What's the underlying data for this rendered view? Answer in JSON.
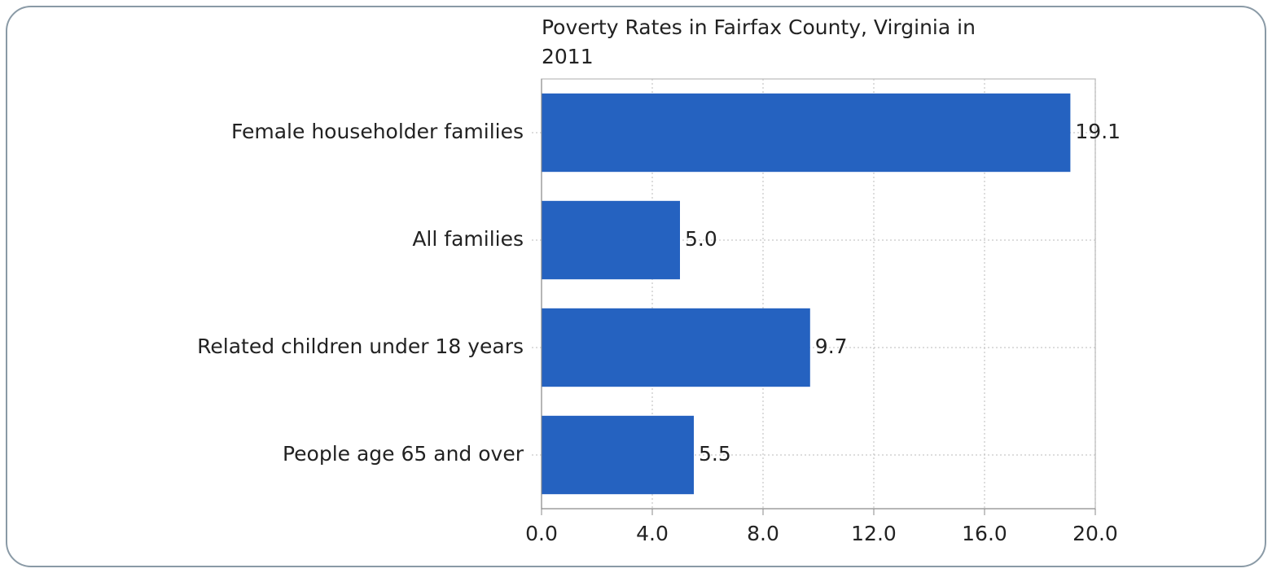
{
  "chart_data": {
    "type": "bar",
    "orientation": "horizontal",
    "title": "Poverty Rates in Fairfax County, Virginia in 2011",
    "categories": [
      "Female householder families",
      "All families",
      "Related children under 18 years",
      "People age 65 and over"
    ],
    "values": [
      19.1,
      5.0,
      9.7,
      5.5
    ],
    "value_labels": [
      "19.1",
      "5.0",
      "9.7",
      "5.5"
    ],
    "color": "#2562c0",
    "xlim": [
      0,
      20
    ],
    "xticks": [
      {
        "value": 0,
        "label": "0.0"
      },
      {
        "value": 4,
        "label": "4.0"
      },
      {
        "value": 8,
        "label": "8.0"
      },
      {
        "value": 12,
        "label": "12.0"
      },
      {
        "value": 16,
        "label": "16.0"
      },
      {
        "value": 20,
        "label": "20.0"
      }
    ],
    "grid": true
  }
}
